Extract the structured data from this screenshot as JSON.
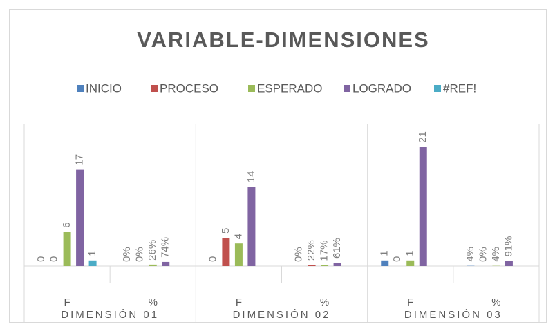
{
  "chart_data": {
    "type": "bar",
    "title": "VARIABLE-DIMENSIONES",
    "categories": [
      "F",
      "%",
      "F",
      "%",
      "F",
      "%"
    ],
    "category_groups": [
      "DIMENSIÓN 01",
      "DIMENSIÓN 02",
      "DIMENSIÓN 03"
    ],
    "ylim": [
      0,
      25
    ],
    "series": [
      {
        "name": "INICIO",
        "color": "#4f81bd",
        "values": [
          0,
          0,
          0,
          0,
          1,
          0.04
        ],
        "value_labels": [
          "0",
          "0%",
          "0",
          "0%",
          "1",
          "4%"
        ]
      },
      {
        "name": "PROCESO",
        "color": "#c0504d",
        "values": [
          0,
          0,
          5,
          0.22,
          0,
          0
        ],
        "value_labels": [
          "0",
          "0%",
          "5",
          "22%",
          "0",
          "0%"
        ]
      },
      {
        "name": "ESPERADO",
        "color": "#9bbb59",
        "values": [
          6,
          0.26,
          4,
          0.17,
          1,
          0.04
        ],
        "value_labels": [
          "6",
          "26%",
          "4",
          "17%",
          "1",
          "4%"
        ]
      },
      {
        "name": "LOGRADO",
        "color": "#8064a2",
        "values": [
          17,
          0.74,
          14,
          0.61,
          21,
          0.91
        ],
        "value_labels": [
          "17",
          "74%",
          "14",
          "61%",
          "21",
          "91%"
        ]
      },
      {
        "name": "#REF!",
        "color": "#4bacc6",
        "values": [
          1,
          null,
          null,
          null,
          null,
          null
        ],
        "value_labels": [
          "1",
          null,
          null,
          null,
          null,
          null
        ]
      }
    ]
  }
}
